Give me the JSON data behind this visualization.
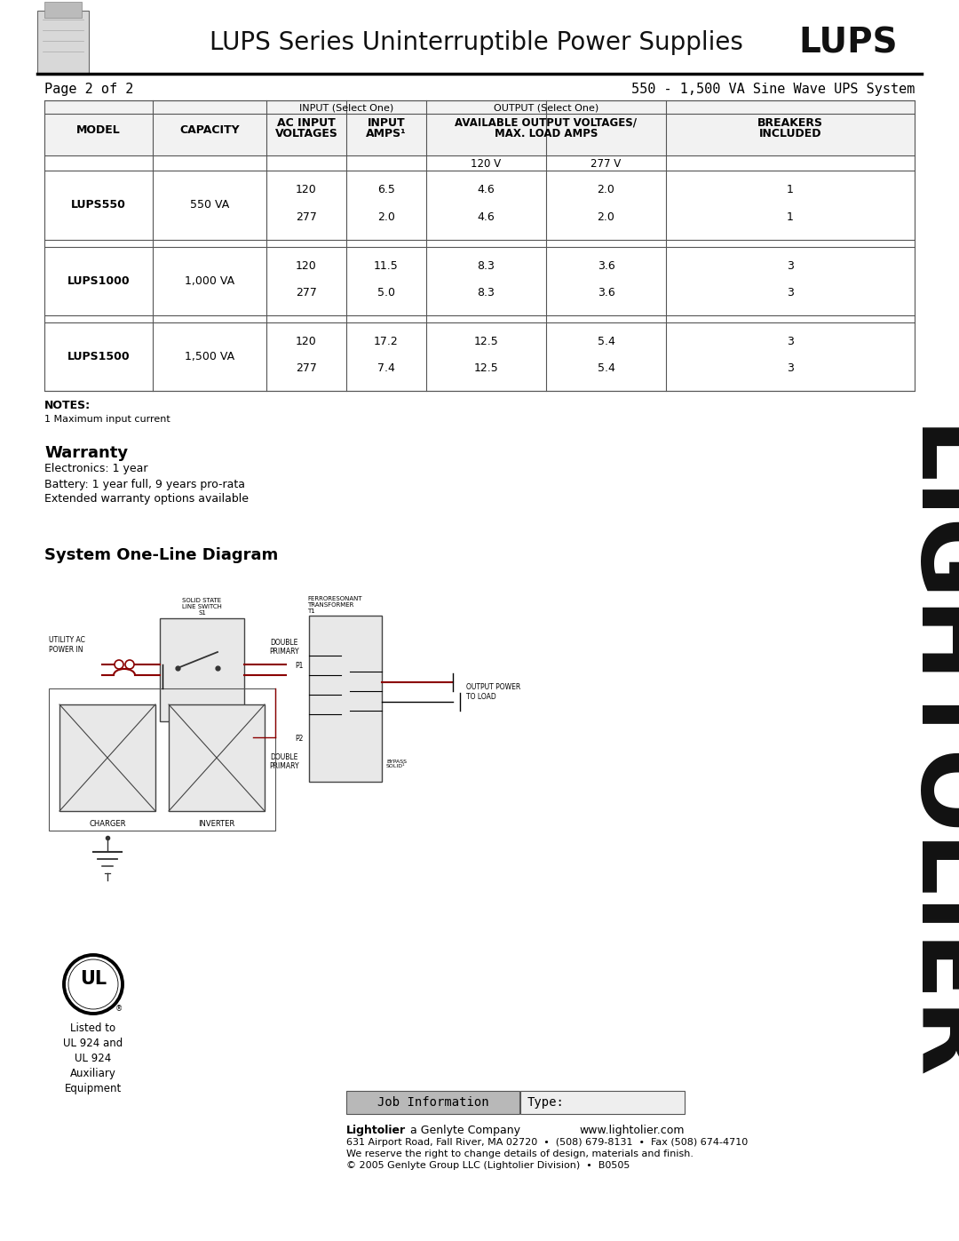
{
  "title": "LUPS Series Uninterruptible Power Supplies",
  "title_bold": "LUPS",
  "page_info": "Page 2 of 2",
  "page_right": "550 - 1,500 VA Sine Wave UPS System",
  "bg_color": "#ffffff",
  "table_headers": {
    "input_select": "INPUT (Select One)",
    "output_select": "OUTPUT (Select One)",
    "col1": "MODEL",
    "col2": "CAPACITY",
    "col3a": "AC INPUT",
    "col3b": "VOLTAGES",
    "col4a": "INPUT",
    "col4b": "AMPS¹",
    "col5a": "AVAILABLE OUTPUT VOLTAGES/",
    "col5b": "MAX. LOAD AMPS",
    "col6a": "BREAKERS",
    "col6b": "INCLUDED",
    "v120": "120 V",
    "v277": "277 V"
  },
  "table_rows": [
    {
      "model": "LUPS550",
      "capacity": "550 VA",
      "ac1": "120",
      "ac2": "277",
      "amps1": "6.5",
      "amps2": "2.0",
      "out120_1": "4.6",
      "out120_2": "4.6",
      "out277_1": "2.0",
      "out277_2": "2.0",
      "br1": "1",
      "br2": "1"
    },
    {
      "model": "LUPS1000",
      "capacity": "1,000 VA",
      "ac1": "120",
      "ac2": "277",
      "amps1": "11.5",
      "amps2": "5.0",
      "out120_1": "8.3",
      "out120_2": "8.3",
      "out277_1": "3.6",
      "out277_2": "3.6",
      "br1": "3",
      "br2": "3"
    },
    {
      "model": "LUPS1500",
      "capacity": "1,500 VA",
      "ac1": "120",
      "ac2": "277",
      "amps1": "17.2",
      "amps2": "7.4",
      "out120_1": "12.5",
      "out120_2": "12.5",
      "out277_1": "5.4",
      "out277_2": "5.4",
      "br1": "3",
      "br2": "3"
    }
  ],
  "notes_title": "NOTES:",
  "notes": [
    "1 Maximum input current"
  ],
  "warranty_title": "Warranty",
  "warranty_lines": [
    "Electronics: 1 year",
    "Battery: 1 year full, 9 years pro-rata",
    "Extended warranty options available"
  ],
  "diagram_title": "System One-Line Diagram",
  "lightolier_text": "LIGHTOLIER",
  "ul_listed": "Listed to\nUL 924 and\nUL 924\nAuxiliary\nEquipment",
  "footer_job": "Job Information",
  "footer_type": "Type:",
  "footer_company": "Lightolier",
  "footer_company_sub": " a Genlyte Company",
  "footer_website": "www.lightolier.com",
  "footer_address": "631 Airport Road, Fall River, MA 02720  •  (508) 679-8131  •  Fax (508) 674-4710",
  "footer_reserve": "We reserve the right to change details of design, materials and finish.",
  "footer_copyright": "© 2005 Genlyte Group LLC (Lightolier Division)  •  B0505",
  "wire_color": "#8B0000",
  "line_color": "#000000",
  "gray_line": "#555555"
}
